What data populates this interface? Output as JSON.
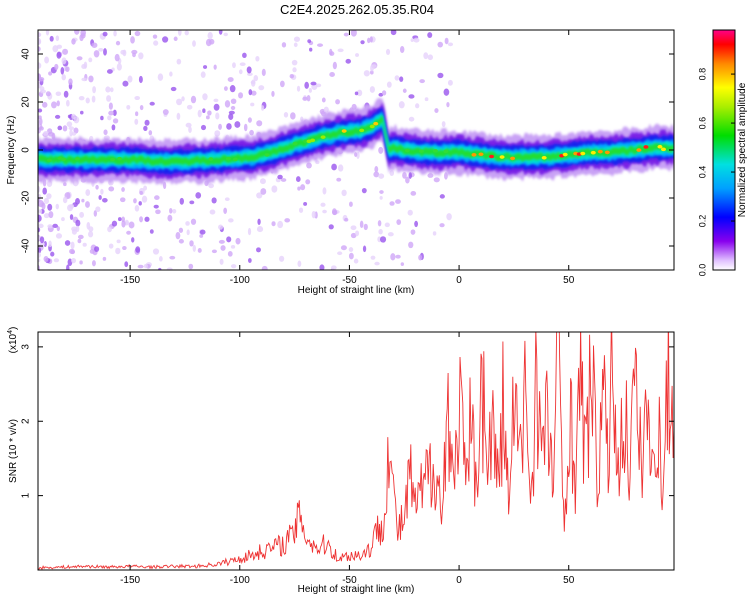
{
  "title": "C2E4.2025.262.05.35.R04",
  "chart_data": [
    {
      "type": "heatmap",
      "title": "C2E4.2025.262.05.35.R04",
      "xlabel": "Height of straight line (km)",
      "ylabel": "Frequency (Hz)",
      "xlim": [
        -192,
        98
      ],
      "ylim": [
        -50,
        50
      ],
      "xticks": [
        -150,
        -100,
        -50,
        0,
        50
      ],
      "yticks": [
        -40,
        -20,
        0,
        20,
        40
      ],
      "xtick_labels": [
        "-150",
        "-100",
        "-50",
        "0",
        "50"
      ],
      "ytick_labels": [
        "-40",
        "-20",
        "0",
        "20",
        "40"
      ],
      "ridge": {
        "x": [
          -192,
          -170,
          -150,
          -130,
          -110,
          -95,
          -85,
          -75,
          -65,
          -55,
          -45,
          -40,
          -35,
          -32,
          -30,
          -25,
          -15,
          0,
          10,
          20,
          30,
          40,
          50,
          60,
          70,
          80,
          90,
          98
        ],
        "y": [
          -4,
          -4,
          -4,
          -5,
          -4,
          -3,
          -1,
          2,
          5,
          7,
          8,
          10,
          13,
          0,
          1,
          0,
          -1,
          -1,
          -2,
          -3,
          -3,
          -3,
          -2,
          -1,
          -1,
          0,
          1,
          1
        ]
      },
      "colorbar": {
        "label": "Normalized spectral amplitude",
        "ticks": [
          0.0,
          0.2,
          0.4,
          0.6,
          0.8
        ],
        "tick_labels": [
          "0.0",
          "0.2",
          "0.4",
          "0.6",
          "0.8"
        ],
        "range": [
          0,
          0.98
        ]
      }
    },
    {
      "type": "line",
      "xlabel": "Height of straight line (km)",
      "ylabel": "SNR (10 * v/v)",
      "scale_label": "(x10",
      "scale_exp": "4",
      "scale_close": ")",
      "xlim": [
        -192,
        98
      ],
      "ylim": [
        0,
        3.2
      ],
      "xticks": [
        -150,
        -100,
        -50,
        0,
        50
      ],
      "yticks": [
        1,
        2,
        3
      ],
      "xtick_labels": [
        "-150",
        "-100",
        "-50",
        "0",
        "50"
      ],
      "ytick_labels": [
        "1",
        "2",
        "3"
      ],
      "series": [
        {
          "name": "SNR",
          "color": "#ee3333",
          "x": [
            -192,
            -180,
            -170,
            -160,
            -150,
            -140,
            -130,
            -120,
            -110,
            -100,
            -95,
            -90,
            -85,
            -80,
            -75,
            -72,
            -70,
            -65,
            -60,
            -55,
            -50,
            -45,
            -40,
            -38,
            -35,
            -33,
            -32,
            -30,
            -28,
            -25,
            -22,
            -20,
            -15,
            -10,
            -8,
            -5,
            -2,
            0,
            3,
            5,
            8,
            10,
            13,
            15,
            18,
            20,
            23,
            25,
            28,
            30,
            33,
            35,
            38,
            40,
            43,
            45,
            48,
            50,
            53,
            55,
            58,
            60,
            63,
            65,
            68,
            70,
            73,
            75,
            78,
            80,
            83,
            85,
            88,
            90,
            93,
            95,
            98
          ],
          "values": [
            0.03,
            0.04,
            0.05,
            0.04,
            0.05,
            0.04,
            0.05,
            0.05,
            0.08,
            0.15,
            0.2,
            0.25,
            0.3,
            0.35,
            0.5,
            0.8,
            0.45,
            0.3,
            0.35,
            0.15,
            0.2,
            0.2,
            0.3,
            0.5,
            0.6,
            1.2,
            1.9,
            1.0,
            0.5,
            0.7,
            1.3,
            0.8,
            1.2,
            1.5,
            0.6,
            2.3,
            1.0,
            2.5,
            1.0,
            1.9,
            1.2,
            2.7,
            1.4,
            2.0,
            1.1,
            2.2,
            0.8,
            2.3,
            1.4,
            2.5,
            1.0,
            2.6,
            1.5,
            2.0,
            1.2,
            3.2,
            0.5,
            2.2,
            1.3,
            2.5,
            1.5,
            2.8,
            1.2,
            2.3,
            1.6,
            2.7,
            1.3,
            2.1,
            1.5,
            2.4,
            1.4,
            2.3,
            1.2,
            2.2,
            1.0,
            2.6,
            1.9
          ]
        }
      ]
    }
  ]
}
